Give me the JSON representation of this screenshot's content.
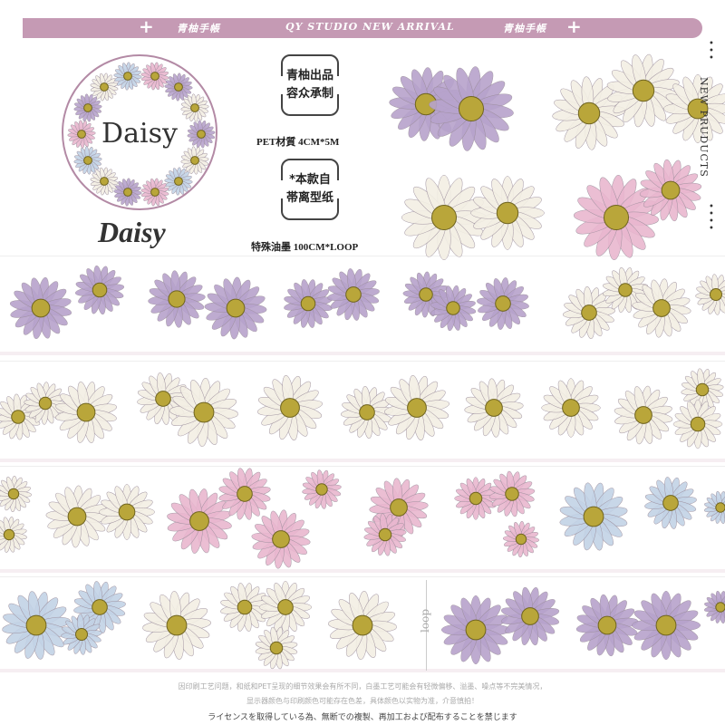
{
  "banner": {
    "left_text": "青柚手帳",
    "center_text": "QY STUDIO NEW ARRIVAL",
    "right_text": "青柚手帳",
    "plus_icon": "+"
  },
  "product": {
    "circle_title": "Daisy",
    "brand_title": "Daisy"
  },
  "box1": {
    "line1": "青柚出品",
    "line2": "容众承制"
  },
  "spec1": "PET材質  4CM*5M",
  "box2": {
    "line1": "*本款自",
    "line2": "帯离型纸"
  },
  "spec2": "特殊油墨  100CM*LOOP",
  "side_label": "NEW PRUDUCTS",
  "loop_label": "loop",
  "notes": [
    "因印刷工艺问题，和纸和PET呈现的细节效果会有所不同，白墨工艺可能会有轻微偏移、溢墨、噪点等不完美情况，",
    "显示器颜色与印刷颜色可能存在色差，具体颜色以实物为准，介意慎拍！",
    "ライセンスを取得している為、無断での複製、再加工および配布することを禁じます"
  ],
  "colors": {
    "banner": "#c59ab4",
    "circle_border": "#b38aa5",
    "purple": "#b7a3cc",
    "white": "#f3efe4",
    "pink": "#e9b7cf",
    "blue": "#c3d3e6",
    "center": "#b9a63a"
  }
}
